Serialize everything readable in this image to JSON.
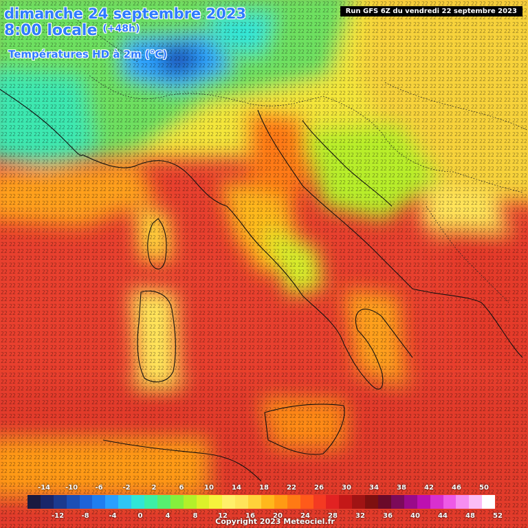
{
  "header": {
    "date_line": "dimanche 24 septembre 2023",
    "time_line": "8:00 locale",
    "offset": "(+48h)",
    "variable": "Températures HD à 2m (°C)",
    "run_info": "Run GFS 6Z du vendredi 22 septembre 2023"
  },
  "legend": {
    "colors": [
      "#1a1a40",
      "#19266a",
      "#1b3a8f",
      "#1c4fb5",
      "#1d63d8",
      "#1f7ef0",
      "#2aa0ff",
      "#2fc6f5",
      "#30e6d7",
      "#3cf0a6",
      "#57f070",
      "#85f03d",
      "#b3f02a",
      "#dcf02a",
      "#f6f23c",
      "#fff06a",
      "#ffe45a",
      "#ffd23a",
      "#ffb81c",
      "#ff9a14",
      "#ff7a14",
      "#ff5a1a",
      "#f43a22",
      "#e22222",
      "#c41818",
      "#a01414",
      "#7e1010",
      "#6a0a2a",
      "#7c0a5a",
      "#9a0a8a",
      "#bd10b0",
      "#d830cf",
      "#ee5ae6",
      "#f68ef0",
      "#fbbdf6",
      "#ffffff"
    ],
    "upper_ticks": [
      "-14",
      "-10",
      "-6",
      "-2",
      "2",
      "6",
      "10",
      "14",
      "18",
      "22",
      "26",
      "30",
      "34",
      "38",
      "42",
      "46",
      "50"
    ],
    "lower_ticks": [
      "-12",
      "-8",
      "-4",
      "0",
      "4",
      "8",
      "12",
      "16",
      "20",
      "24",
      "28",
      "32",
      "36",
      "40",
      "44",
      "48",
      "52"
    ]
  },
  "footer": {
    "copyright": "Copyright 2023 Meteociel.fr"
  },
  "icons": {
    "map": "temperature-map",
    "legend": "color-scale"
  }
}
